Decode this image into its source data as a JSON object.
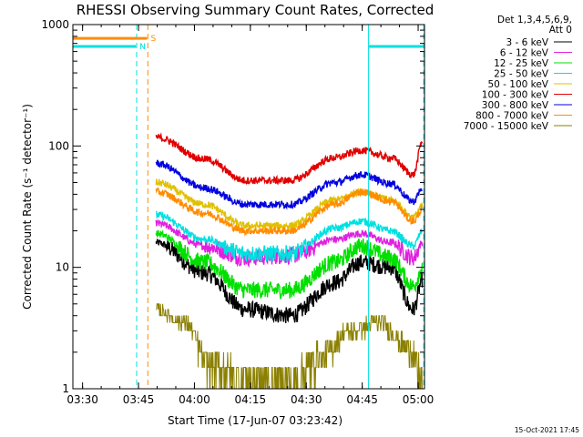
{
  "chart_data": {
    "type": "line",
    "title": "RHESSI Observing Summary Count Rates, Corrected",
    "xlabel": "Start Time (17-Jun-07 03:23:42)",
    "ylabel": "Corrected Count Rate (s⁻¹ detector⁻¹)",
    "yscale": "log",
    "ylim": [
      1,
      1000
    ],
    "xlim_minutes": [
      3.7,
      98.0
    ],
    "x_ticks": [
      {
        "min": 6.3,
        "label": "03:30"
      },
      {
        "min": 21.3,
        "label": "03:45"
      },
      {
        "min": 36.3,
        "label": "04:00"
      },
      {
        "min": 51.3,
        "label": "04:15"
      },
      {
        "min": 66.3,
        "label": "04:30"
      },
      {
        "min": 81.3,
        "label": "04:45"
      },
      {
        "min": 96.3,
        "label": "05:00"
      }
    ],
    "y_ticks": [
      {
        "value": 1,
        "label": "1"
      },
      {
        "value": 10,
        "label": "10"
      },
      {
        "value": 100,
        "label": "100"
      },
      {
        "value": 1000,
        "label": "1000"
      }
    ],
    "legend_header": [
      "Det 1,3,4,5,6,9,",
      "Att 0"
    ],
    "series": [
      {
        "name": "3 - 6 keV",
        "color": "#000000",
        "min": [
          26,
          39,
          50,
          62,
          74,
          81,
          89,
          95,
          97.5
        ],
        "values": [
          16,
          9,
          4.5,
          4,
          7.5,
          11,
          10,
          4.5,
          8
        ]
      },
      {
        "name": "6 - 12 keV",
        "color": "#e020e0",
        "min": [
          26,
          39,
          50,
          62,
          74,
          81,
          89,
          95,
          97.5
        ],
        "values": [
          23,
          15,
          12,
          12.5,
          17,
          19,
          16,
          12,
          16
        ]
      },
      {
        "name": "12 - 25 keV",
        "color": "#00e000",
        "min": [
          26,
          39,
          50,
          62,
          74,
          81,
          89,
          95,
          97.5
        ],
        "values": [
          19,
          11,
          6.5,
          6.5,
          11,
          15,
          12,
          7,
          10
        ]
      },
      {
        "name": "25 - 50 keV",
        "color": "#00e0e0",
        "min": [
          26,
          39,
          50,
          62,
          74,
          81,
          89,
          95,
          97.5
        ],
        "values": [
          27,
          17,
          13,
          13,
          21,
          24,
          20,
          15,
          20
        ]
      },
      {
        "name": "50 - 100 keV",
        "color": "#e0c000",
        "min": [
          26,
          39,
          50,
          62,
          74,
          81,
          89,
          95,
          97.5
        ],
        "values": [
          50,
          33,
          22,
          22,
          36,
          42,
          36,
          26,
          32
        ]
      },
      {
        "name": "100 - 300 keV",
        "color": "#e00000",
        "min": [
          26,
          39,
          50,
          62,
          74,
          81,
          89,
          95,
          97.5
        ],
        "values": [
          118,
          78,
          52,
          52,
          80,
          92,
          80,
          58,
          110
        ]
      },
      {
        "name": "300 - 800 keV",
        "color": "#0000e0",
        "min": [
          26,
          39,
          50,
          62,
          74,
          81,
          89,
          95,
          97.5
        ],
        "values": [
          72,
          45,
          33,
          33,
          50,
          58,
          49,
          35,
          45
        ]
      },
      {
        "name": "800 - 7000 keV",
        "color": "#ff8c00",
        "min": [
          26,
          39,
          50,
          62,
          74,
          81,
          89,
          95,
          97.5
        ],
        "values": [
          42,
          28,
          20,
          20,
          33,
          42,
          35,
          24,
          30
        ]
      },
      {
        "name": "7000 - 15000 keV",
        "color": "#8b8000",
        "min": [
          26,
          34,
          40,
          52,
          62,
          70,
          78,
          86,
          94,
          97.5
        ],
        "values": [
          4.5,
          3.5,
          1.6,
          1.2,
          1.1,
          1.8,
          3,
          3.5,
          2.2,
          1.1
        ]
      }
    ],
    "flags": [
      {
        "label": "S",
        "color": "#ff8c00",
        "start_min": 3.7,
        "end_min": 23.6,
        "value": 770
      },
      {
        "label": "N",
        "color": "#00e0e0",
        "start_min": 3.7,
        "end_min": 20.6,
        "value": 660
      },
      {
        "label": "",
        "color": "#00e0e0",
        "start_min": 83.0,
        "end_min": 97.8,
        "value": 660
      }
    ],
    "vertical_lines": [
      {
        "min": 20.8,
        "color": "#00e0e0",
        "style": "dashed"
      },
      {
        "min": 23.8,
        "color": "#ff8c00",
        "style": "dashed"
      },
      {
        "min": 83.0,
        "color": "#00e0e0",
        "style": "solid"
      },
      {
        "min": 97.8,
        "color": "#00e0e0",
        "style": "dashed"
      }
    ],
    "footer": "15-Oct-2021 17:45"
  }
}
